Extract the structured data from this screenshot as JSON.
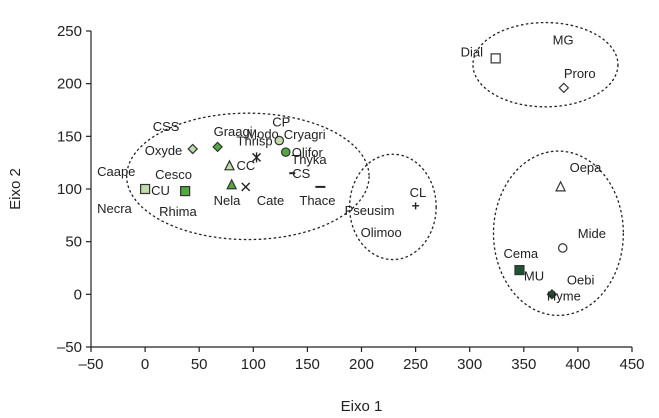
{
  "chart_data": {
    "type": "scatter",
    "title": "",
    "xlabel": "Eixo 1",
    "ylabel": "Eixo 2",
    "xlim": [
      -50,
      450
    ],
    "ylim": [
      -50,
      250
    ],
    "x_ticks": [
      -50,
      0,
      50,
      100,
      150,
      200,
      250,
      300,
      350,
      400,
      450
    ],
    "y_ticks": [
      -50,
      0,
      50,
      100,
      150,
      200,
      250
    ],
    "x_tick_labels": [
      "–50",
      "0",
      "50",
      "100",
      "150",
      "200",
      "250",
      "300",
      "350",
      "400",
      "450"
    ],
    "y_tick_labels": [
      "–50",
      "0",
      "50",
      "100",
      "150",
      "200",
      "250"
    ],
    "grid": false,
    "legend": "none",
    "colors": {
      "light_green": "#bfdcaa",
      "mid_green": "#7cc067",
      "green": "#53a840",
      "dark_green": "#1e5230",
      "light_gray": "#d2d2d2",
      "outline": "#333333"
    },
    "points": [
      {
        "label": "Caape",
        "x": 0,
        "y": 100,
        "marker": "square",
        "fill": "#bfdcaa"
      },
      {
        "label": "CU",
        "x": 0,
        "y": 100,
        "marker": "none",
        "fill": ""
      },
      {
        "label": "Necra",
        "x": 0,
        "y": 100,
        "marker": "none",
        "fill": ""
      },
      {
        "label": "Rhima",
        "x": 37,
        "y": 98,
        "marker": "square",
        "fill": "#53a840"
      },
      {
        "label": "Cesco",
        "x": 37,
        "y": 98,
        "marker": "none",
        "fill": ""
      },
      {
        "label": "Oxyde",
        "x": 44,
        "y": 138,
        "marker": "diamond",
        "fill": "#bfdcaa"
      },
      {
        "label": "CSS",
        "x": 44,
        "y": 138,
        "marker": "none",
        "fill": ""
      },
      {
        "label": "Graagi",
        "x": 67,
        "y": 140,
        "marker": "diamond",
        "fill": "#53a840"
      },
      {
        "label": "CC",
        "x": 78,
        "y": 122,
        "marker": "triangle",
        "fill": "#bfdcaa"
      },
      {
        "label": "Nela",
        "x": 80,
        "y": 104,
        "marker": "triangle",
        "fill": "#53a840"
      },
      {
        "label": "Cate",
        "x": 93,
        "y": 102,
        "marker": "x",
        "fill": ""
      },
      {
        "label": "Thrisp",
        "x": 103,
        "y": 130,
        "marker": "star",
        "fill": ""
      },
      {
        "label": "CP",
        "x": 124,
        "y": 146,
        "marker": "circle",
        "fill": "#bfdcaa"
      },
      {
        "label": "Modo",
        "x": 124,
        "y": 146,
        "marker": "none",
        "fill": ""
      },
      {
        "label": "Olifor",
        "x": 130,
        "y": 135,
        "marker": "circle",
        "fill": "#53a840"
      },
      {
        "label": "Cryagri",
        "x": 130,
        "y": 135,
        "marker": "none",
        "fill": ""
      },
      {
        "label": "Thyka",
        "x": 136,
        "y": 115,
        "marker": "dash",
        "fill": ""
      },
      {
        "label": "CS",
        "x": 136,
        "y": 115,
        "marker": "none",
        "fill": ""
      },
      {
        "label": "Thace",
        "x": 162,
        "y": 102,
        "marker": "bar",
        "fill": ""
      },
      {
        "label": "CL",
        "x": 250,
        "y": 84,
        "marker": "plus",
        "fill": ""
      },
      {
        "label": "Pseusim",
        "x": 250,
        "y": 84,
        "marker": "none",
        "fill": ""
      },
      {
        "label": "Olimoo",
        "x": 250,
        "y": 84,
        "marker": "none",
        "fill": ""
      },
      {
        "label": "Dial",
        "x": 324,
        "y": 224,
        "marker": "square",
        "fill": "#ffffff"
      },
      {
        "label": "MG",
        "x": 324,
        "y": 224,
        "marker": "none",
        "fill": ""
      },
      {
        "label": "Proro",
        "x": 387,
        "y": 196,
        "marker": "diamond",
        "fill": "#ffffff"
      },
      {
        "label": "Oepa",
        "x": 384,
        "y": 102,
        "marker": "triangle",
        "fill": "#ffffff"
      },
      {
        "label": "Mide",
        "x": 386,
        "y": 44,
        "marker": "circle",
        "fill": "#ffffff"
      },
      {
        "label": "Cema",
        "x": 346,
        "y": 23,
        "marker": "square",
        "fill": "#1e5230"
      },
      {
        "label": "Hyme",
        "x": 376,
        "y": 0,
        "marker": "diamond",
        "fill": "#1e5230"
      },
      {
        "label": "MU",
        "x": 376,
        "y": 0,
        "marker": "none",
        "fill": ""
      },
      {
        "label": "Oebi",
        "x": 376,
        "y": 0,
        "marker": "none",
        "fill": ""
      }
    ],
    "clusters": [
      {
        "cx": 95,
        "cy": 112,
        "rx": 112,
        "ry": 60
      },
      {
        "cx": 229,
        "cy": 83,
        "rx": 40,
        "ry": 50
      },
      {
        "cx": 370,
        "cy": 218,
        "rx": 67,
        "ry": 40
      },
      {
        "cx": 382,
        "cy": 58,
        "rx": 60,
        "ry": 78
      }
    ]
  }
}
